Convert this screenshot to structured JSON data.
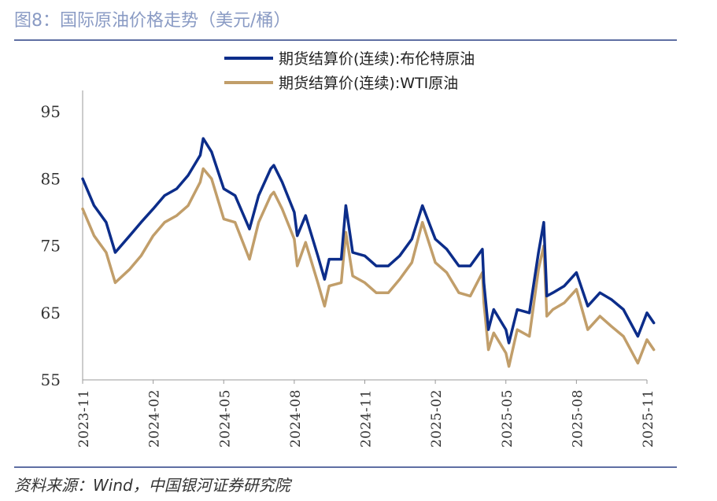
{
  "figure": {
    "title": "图8：国际原油价格走势（美元/桶）",
    "source": "资料来源：Wind，中国银河证券研究院"
  },
  "chart_data": {
    "type": "line",
    "title": "国际原油价格走势（美元/桶）",
    "xlabel": "",
    "ylabel": "",
    "ylim": [
      55,
      98
    ],
    "y_ticks": [
      55,
      65,
      75,
      85,
      95
    ],
    "x_ticks": [
      "2023-11",
      "2024-02",
      "2024-05",
      "2024-08",
      "2024-11",
      "2025-02",
      "2025-05",
      "2025-08",
      "2025-11"
    ],
    "x_range": [
      "2023-11",
      "2025-11"
    ],
    "legend_position": "top-right",
    "x": [
      "2023-11-01",
      "2023-11-16",
      "2023-12-01",
      "2023-12-13",
      "2024-01-01",
      "2024-01-16",
      "2024-02-01",
      "2024-02-16",
      "2024-03-01",
      "2024-03-16",
      "2024-04-01",
      "2024-04-05",
      "2024-04-16",
      "2024-05-01",
      "2024-05-16",
      "2024-06-04",
      "2024-06-16",
      "2024-07-01",
      "2024-07-05",
      "2024-07-16",
      "2024-08-01",
      "2024-08-05",
      "2024-08-16",
      "2024-09-01",
      "2024-09-10",
      "2024-09-16",
      "2024-10-01",
      "2024-10-07",
      "2024-10-16",
      "2024-11-01",
      "2024-11-16",
      "2024-12-01",
      "2024-12-16",
      "2025-01-01",
      "2025-01-15",
      "2025-02-01",
      "2025-02-16",
      "2025-03-01",
      "2025-03-16",
      "2025-04-01",
      "2025-04-03",
      "2025-04-09",
      "2025-04-16",
      "2025-05-01",
      "2025-05-05",
      "2025-05-16",
      "2025-06-01",
      "2025-06-13",
      "2025-06-20",
      "2025-06-24",
      "2025-07-01",
      "2025-07-16",
      "2025-08-01",
      "2025-08-16",
      "2025-09-01",
      "2025-09-16",
      "2025-10-01",
      "2025-10-20",
      "2025-11-01",
      "2025-11-10"
    ],
    "series": [
      {
        "name": "期货结算价(连续):布伦特原油",
        "color": "#0c2d8a",
        "values": [
          85.0,
          81.0,
          78.5,
          74.0,
          76.5,
          78.5,
          80.5,
          82.5,
          83.5,
          85.5,
          88.5,
          91.0,
          89.0,
          83.5,
          82.5,
          77.5,
          82.5,
          86.5,
          87.0,
          84.5,
          80.0,
          76.5,
          79.5,
          73.5,
          70.0,
          73.0,
          73.0,
          81.0,
          74.0,
          73.5,
          72.0,
          72.0,
          73.5,
          76.0,
          81.0,
          76.0,
          74.5,
          72.0,
          72.0,
          74.5,
          69.5,
          62.5,
          65.5,
          62.5,
          60.5,
          65.5,
          65.0,
          74.0,
          78.5,
          67.5,
          68.0,
          69.0,
          71.0,
          66.0,
          68.0,
          67.0,
          65.5,
          61.5,
          65.0,
          63.5
        ]
      },
      {
        "name": "期货结算价(连续):WTI原油",
        "color": "#c19e6a",
        "values": [
          80.5,
          76.5,
          74.0,
          69.5,
          71.5,
          73.5,
          76.5,
          78.5,
          79.5,
          81.0,
          84.5,
          86.5,
          85.0,
          79.0,
          78.5,
          73.0,
          78.5,
          82.5,
          83.0,
          80.5,
          76.0,
          72.0,
          75.5,
          69.5,
          66.0,
          69.0,
          69.5,
          77.0,
          70.5,
          69.5,
          68.0,
          68.0,
          70.0,
          72.5,
          78.5,
          72.5,
          71.0,
          68.0,
          67.5,
          71.0,
          66.5,
          59.5,
          62.0,
          59.0,
          57.0,
          62.5,
          61.5,
          71.5,
          75.0,
          64.5,
          65.5,
          66.5,
          68.5,
          62.5,
          64.5,
          63.0,
          61.5,
          57.5,
          61.0,
          59.5
        ]
      }
    ]
  }
}
